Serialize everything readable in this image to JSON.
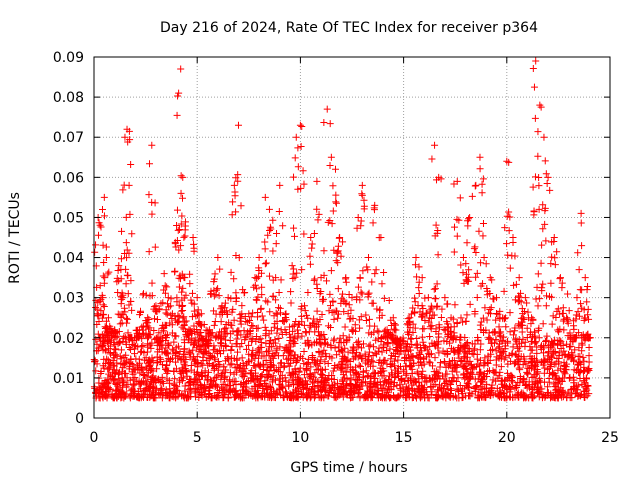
{
  "chart_data": {
    "type": "scatter",
    "title": "Day 216 of 2024, Rate Of TEC Index for receiver p364",
    "xlabel": "GPS time / hours",
    "ylabel": "ROTI / TECUs",
    "xlim": [
      0,
      25
    ],
    "ylim": [
      0,
      0.09
    ],
    "xticks": [
      0,
      5,
      10,
      15,
      20,
      25
    ],
    "xtick_labels": [
      "0",
      "5",
      "10",
      "15",
      "20",
      "25"
    ],
    "yticks": [
      0,
      0.01,
      0.02,
      0.03,
      0.04,
      0.05,
      0.06,
      0.07,
      0.08,
      0.09
    ],
    "ytick_labels": [
      "0",
      "0.01",
      "0.02",
      "0.03",
      "0.04",
      "0.05",
      "0.06",
      "0.07",
      "0.08",
      "0.09"
    ],
    "grid": true,
    "marker": "plus",
    "color": "#ff0000",
    "series": [
      {
        "name": "ROTI",
        "x": [
          0.2,
          0.3,
          0.4,
          0.5,
          0.6,
          0.7,
          0.8,
          1.0,
          1.2,
          1.4,
          1.5,
          1.6,
          1.7,
          1.8,
          2.0,
          2.2,
          2.4,
          2.6,
          2.8,
          3.0,
          3.2,
          3.4,
          3.6,
          3.8,
          4.0,
          4.1,
          4.2,
          4.3,
          4.4,
          4.6,
          4.8,
          5.0,
          5.2,
          5.4,
          5.6,
          5.8,
          6.0,
          6.2,
          6.5,
          6.8,
          7.0,
          7.2,
          7.5,
          7.8,
          8.0,
          8.3,
          8.5,
          8.8,
          9.0,
          9.3,
          9.6,
          9.8,
          10.0,
          10.2,
          10.5,
          10.8,
          11.0,
          11.3,
          11.5,
          11.7,
          11.9,
          12.2,
          12.5,
          12.8,
          13.0,
          13.3,
          13.6,
          13.9,
          14.2,
          14.5,
          14.8,
          15.0,
          15.3,
          15.6,
          15.9,
          16.2,
          16.5,
          16.7,
          17.0,
          17.3,
          17.6,
          17.9,
          18.2,
          18.5,
          18.7,
          18.9,
          19.2,
          19.5,
          19.8,
          20.0,
          20.3,
          20.6,
          20.9,
          21.2,
          21.4,
          21.6,
          21.8,
          22.0,
          22.3,
          22.6,
          22.9,
          23.2,
          23.4,
          23.6,
          23.8,
          23.9
        ],
        "y": [
          0.05,
          0.033,
          0.02,
          0.055,
          0.04,
          0.025,
          0.016,
          0.022,
          0.038,
          0.03,
          0.07,
          0.072,
          0.058,
          0.02,
          0.012,
          0.022,
          0.031,
          0.025,
          0.068,
          0.028,
          0.018,
          0.036,
          0.03,
          0.026,
          0.048,
          0.081,
          0.087,
          0.06,
          0.035,
          0.022,
          0.045,
          0.03,
          0.026,
          0.018,
          0.022,
          0.034,
          0.04,
          0.028,
          0.03,
          0.058,
          0.073,
          0.032,
          0.026,
          0.035,
          0.04,
          0.055,
          0.052,
          0.035,
          0.058,
          0.026,
          0.038,
          0.07,
          0.073,
          0.028,
          0.045,
          0.059,
          0.035,
          0.077,
          0.065,
          0.062,
          0.045,
          0.035,
          0.03,
          0.05,
          0.058,
          0.04,
          0.053,
          0.045,
          0.022,
          0.025,
          0.018,
          0.012,
          0.025,
          0.04,
          0.035,
          0.03,
          0.068,
          0.06,
          0.03,
          0.025,
          0.059,
          0.04,
          0.05,
          0.058,
          0.065,
          0.04,
          0.035,
          0.03,
          0.025,
          0.064,
          0.045,
          0.035,
          0.03,
          0.025,
          0.089,
          0.078,
          0.07,
          0.06,
          0.045,
          0.035,
          0.025,
          0.02,
          0.03,
          0.051,
          0.035,
          0.02
        ]
      }
    ],
    "dense_band": {
      "description_points": "baseline cloud between 0.005 and 0.02",
      "y_low": 0.005,
      "y_high": 0.02
    }
  }
}
